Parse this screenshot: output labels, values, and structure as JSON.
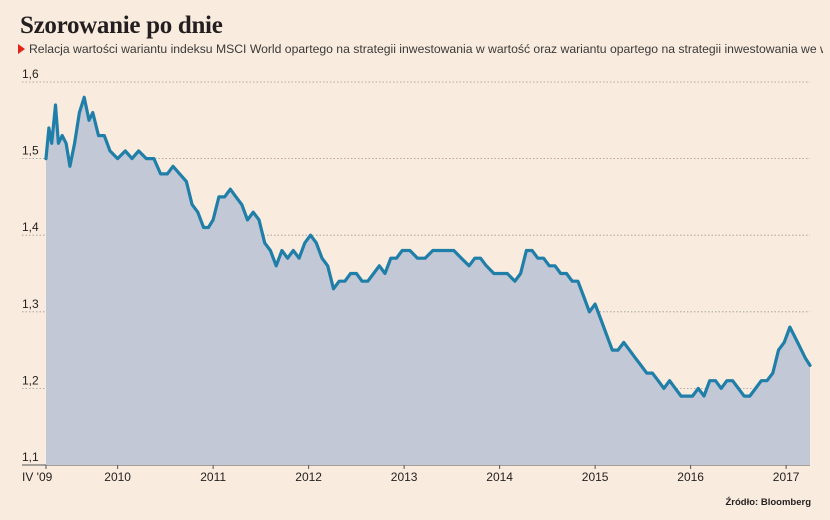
{
  "title": "Szorowanie po dnie",
  "subtitle": "Relacja wartości wariantu indeksu MSCI World opartego na strategii inwestowania w wartość oraz wariantu opartego na strategii inwestowania we wzrost",
  "source": "Źródło: Bloomberg",
  "colors": {
    "line": "#1f7fa8",
    "area": "#c3c8d6",
    "background": "#f9ebdd",
    "marker": "#e2231a",
    "grid": "#9a9a9a"
  },
  "chart_data": {
    "type": "area",
    "title": "Szorowanie po dnie",
    "xlabel": "",
    "ylabel": "",
    "ylim": [
      1.1,
      1.6
    ],
    "xlim": [
      2009.25,
      2017.25
    ],
    "yticks": [
      "1,1",
      "1,2",
      "1,3",
      "1,4",
      "1,5",
      "1,6"
    ],
    "ytick_values": [
      1.1,
      1.2,
      1.3,
      1.4,
      1.5,
      1.6
    ],
    "xticks": [
      "IV '09",
      "2010",
      "2011",
      "2012",
      "2013",
      "2014",
      "2015",
      "2016",
      "2017"
    ],
    "xtick_values": [
      2009.25,
      2010,
      2011,
      2012,
      2013,
      2014,
      2015,
      2016,
      2017
    ],
    "grid": "horizontal dotted",
    "series": [
      {
        "values": [
          [
            2009.25,
            1.5
          ],
          [
            2009.28,
            1.54
          ],
          [
            2009.31,
            1.52
          ],
          [
            2009.35,
            1.57
          ],
          [
            2009.38,
            1.52
          ],
          [
            2009.42,
            1.53
          ],
          [
            2009.46,
            1.52
          ],
          [
            2009.5,
            1.49
          ],
          [
            2009.55,
            1.52
          ],
          [
            2009.6,
            1.56
          ],
          [
            2009.65,
            1.58
          ],
          [
            2009.7,
            1.55
          ],
          [
            2009.74,
            1.56
          ],
          [
            2009.8,
            1.53
          ],
          [
            2009.86,
            1.53
          ],
          [
            2009.92,
            1.51
          ],
          [
            2010.0,
            1.5
          ],
          [
            2010.08,
            1.51
          ],
          [
            2010.15,
            1.5
          ],
          [
            2010.22,
            1.51
          ],
          [
            2010.3,
            1.5
          ],
          [
            2010.38,
            1.5
          ],
          [
            2010.45,
            1.48
          ],
          [
            2010.52,
            1.48
          ],
          [
            2010.58,
            1.49
          ],
          [
            2010.65,
            1.48
          ],
          [
            2010.72,
            1.47
          ],
          [
            2010.78,
            1.44
          ],
          [
            2010.84,
            1.43
          ],
          [
            2010.9,
            1.41
          ],
          [
            2010.95,
            1.41
          ],
          [
            2011.0,
            1.42
          ],
          [
            2011.06,
            1.45
          ],
          [
            2011.12,
            1.45
          ],
          [
            2011.18,
            1.46
          ],
          [
            2011.24,
            1.45
          ],
          [
            2011.3,
            1.44
          ],
          [
            2011.36,
            1.42
          ],
          [
            2011.42,
            1.43
          ],
          [
            2011.48,
            1.42
          ],
          [
            2011.54,
            1.39
          ],
          [
            2011.6,
            1.38
          ],
          [
            2011.66,
            1.36
          ],
          [
            2011.72,
            1.38
          ],
          [
            2011.78,
            1.37
          ],
          [
            2011.84,
            1.38
          ],
          [
            2011.9,
            1.37
          ],
          [
            2011.96,
            1.39
          ],
          [
            2012.02,
            1.4
          ],
          [
            2012.08,
            1.39
          ],
          [
            2012.14,
            1.37
          ],
          [
            2012.2,
            1.36
          ],
          [
            2012.26,
            1.33
          ],
          [
            2012.32,
            1.34
          ],
          [
            2012.38,
            1.34
          ],
          [
            2012.44,
            1.35
          ],
          [
            2012.5,
            1.35
          ],
          [
            2012.56,
            1.34
          ],
          [
            2012.62,
            1.34
          ],
          [
            2012.68,
            1.35
          ],
          [
            2012.74,
            1.36
          ],
          [
            2012.8,
            1.35
          ],
          [
            2012.86,
            1.37
          ],
          [
            2012.92,
            1.37
          ],
          [
            2012.98,
            1.38
          ],
          [
            2013.06,
            1.38
          ],
          [
            2013.14,
            1.37
          ],
          [
            2013.22,
            1.37
          ],
          [
            2013.3,
            1.38
          ],
          [
            2013.36,
            1.38
          ],
          [
            2013.44,
            1.38
          ],
          [
            2013.52,
            1.38
          ],
          [
            2013.6,
            1.37
          ],
          [
            2013.68,
            1.36
          ],
          [
            2013.74,
            1.37
          ],
          [
            2013.8,
            1.37
          ],
          [
            2013.86,
            1.36
          ],
          [
            2013.94,
            1.35
          ],
          [
            2014.0,
            1.35
          ],
          [
            2014.08,
            1.35
          ],
          [
            2014.16,
            1.34
          ],
          [
            2014.22,
            1.35
          ],
          [
            2014.28,
            1.38
          ],
          [
            2014.34,
            1.38
          ],
          [
            2014.4,
            1.37
          ],
          [
            2014.46,
            1.37
          ],
          [
            2014.52,
            1.36
          ],
          [
            2014.58,
            1.36
          ],
          [
            2014.64,
            1.35
          ],
          [
            2014.7,
            1.35
          ],
          [
            2014.76,
            1.34
          ],
          [
            2014.82,
            1.34
          ],
          [
            2014.88,
            1.32
          ],
          [
            2014.94,
            1.3
          ],
          [
            2015.0,
            1.31
          ],
          [
            2015.06,
            1.29
          ],
          [
            2015.12,
            1.27
          ],
          [
            2015.18,
            1.25
          ],
          [
            2015.24,
            1.25
          ],
          [
            2015.3,
            1.26
          ],
          [
            2015.36,
            1.25
          ],
          [
            2015.42,
            1.24
          ],
          [
            2015.48,
            1.23
          ],
          [
            2015.54,
            1.22
          ],
          [
            2015.6,
            1.22
          ],
          [
            2015.66,
            1.21
          ],
          [
            2015.72,
            1.2
          ],
          [
            2015.78,
            1.21
          ],
          [
            2015.84,
            1.2
          ],
          [
            2015.9,
            1.19
          ],
          [
            2015.96,
            1.19
          ],
          [
            2016.02,
            1.19
          ],
          [
            2016.08,
            1.2
          ],
          [
            2016.14,
            1.19
          ],
          [
            2016.2,
            1.21
          ],
          [
            2016.26,
            1.21
          ],
          [
            2016.32,
            1.2
          ],
          [
            2016.38,
            1.21
          ],
          [
            2016.44,
            1.21
          ],
          [
            2016.5,
            1.2
          ],
          [
            2016.56,
            1.19
          ],
          [
            2016.62,
            1.19
          ],
          [
            2016.68,
            1.2
          ],
          [
            2016.74,
            1.21
          ],
          [
            2016.8,
            1.21
          ],
          [
            2016.86,
            1.22
          ],
          [
            2016.92,
            1.25
          ],
          [
            2016.98,
            1.26
          ],
          [
            2017.04,
            1.28
          ],
          [
            2017.08,
            1.27
          ],
          [
            2017.12,
            1.26
          ],
          [
            2017.16,
            1.25
          ],
          [
            2017.2,
            1.24
          ],
          [
            2017.25,
            1.23
          ]
        ]
      }
    ]
  }
}
